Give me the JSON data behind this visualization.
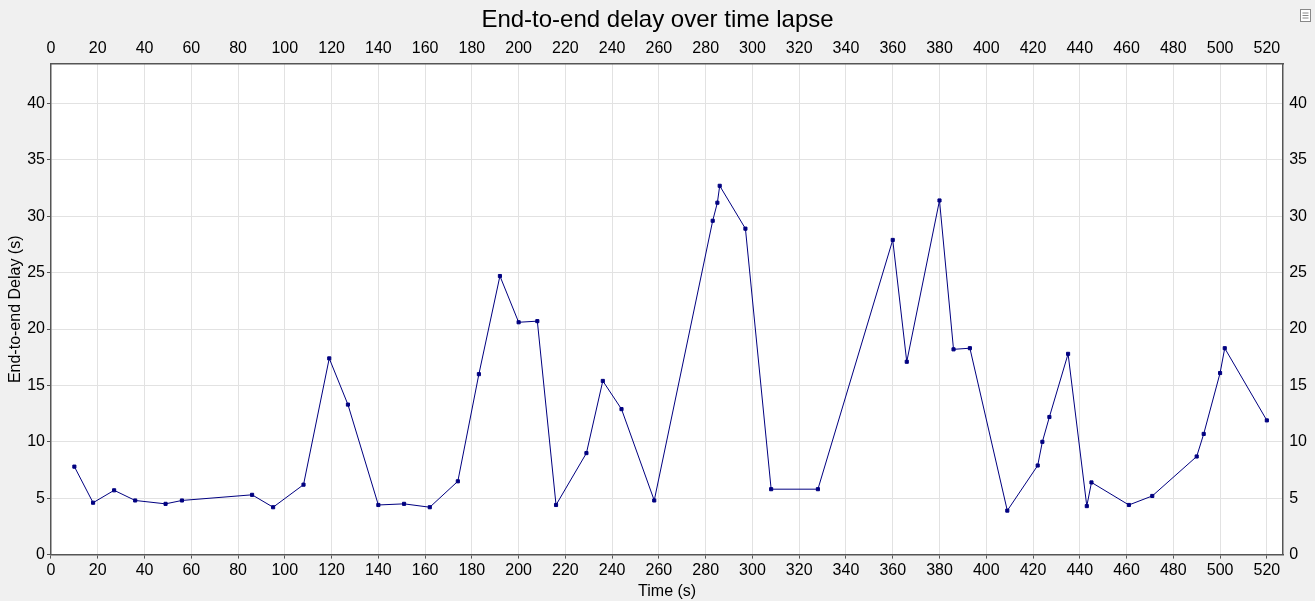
{
  "chart_data": {
    "type": "line",
    "title": "End-to-end delay over time lapse",
    "xlabel": "Time (s)",
    "ylabel": "End-to-end Delay (s)",
    "x": [
      10,
      18,
      27,
      36,
      49,
      56,
      86,
      95,
      108,
      119,
      127,
      140,
      151,
      162,
      174,
      183,
      192,
      200,
      208,
      216,
      229,
      236,
      244,
      258,
      283,
      285,
      286,
      297,
      308,
      328,
      360,
      366,
      380,
      386,
      393,
      409,
      422,
      424,
      427,
      435,
      443,
      445,
      461,
      471,
      490,
      493,
      500,
      502,
      520
    ],
    "series": [
      {
        "color": "#000080",
        "values": [
          7.8,
          4.6,
          5.7,
          4.8,
          4.5,
          4.8,
          5.3,
          4.2,
          6.2,
          17.4,
          13.3,
          4.4,
          4.5,
          4.2,
          6.5,
          16.0,
          24.7,
          20.6,
          20.7,
          4.4,
          9.0,
          15.4,
          12.9,
          4.8,
          29.6,
          31.2,
          32.7,
          28.9,
          5.8,
          5.8,
          27.9,
          17.1,
          31.4,
          18.2,
          18.3,
          3.9,
          7.9,
          10.0,
          12.2,
          17.8,
          4.3,
          6.4,
          4.4,
          5.2,
          8.7,
          10.7,
          16.1,
          18.3,
          11.9
        ]
      }
    ],
    "xlim": [
      0,
      527
    ],
    "xticks": [
      0,
      20,
      40,
      60,
      80,
      100,
      120,
      140,
      160,
      180,
      200,
      220,
      240,
      260,
      280,
      300,
      320,
      340,
      360,
      380,
      400,
      420,
      440,
      460,
      480,
      500,
      520
    ],
    "x2lim": [
      0,
      527
    ],
    "x2ticks": [
      0,
      20,
      40,
      60,
      80,
      100,
      120,
      140,
      160,
      180,
      200,
      220,
      240,
      260,
      280,
      300,
      320,
      340,
      360,
      380,
      400,
      420,
      440,
      460,
      480,
      500,
      520
    ],
    "ylim": [
      0,
      43.5
    ],
    "yticks": [
      0,
      5,
      10,
      15,
      20,
      25,
      30,
      35,
      40
    ],
    "y2lim": [
      0,
      43.5
    ],
    "y2ticks": [
      0,
      5,
      10,
      15,
      20,
      25,
      30,
      35,
      40
    ],
    "marker": "square",
    "line_style": "solid",
    "grid": true,
    "legend": false
  }
}
